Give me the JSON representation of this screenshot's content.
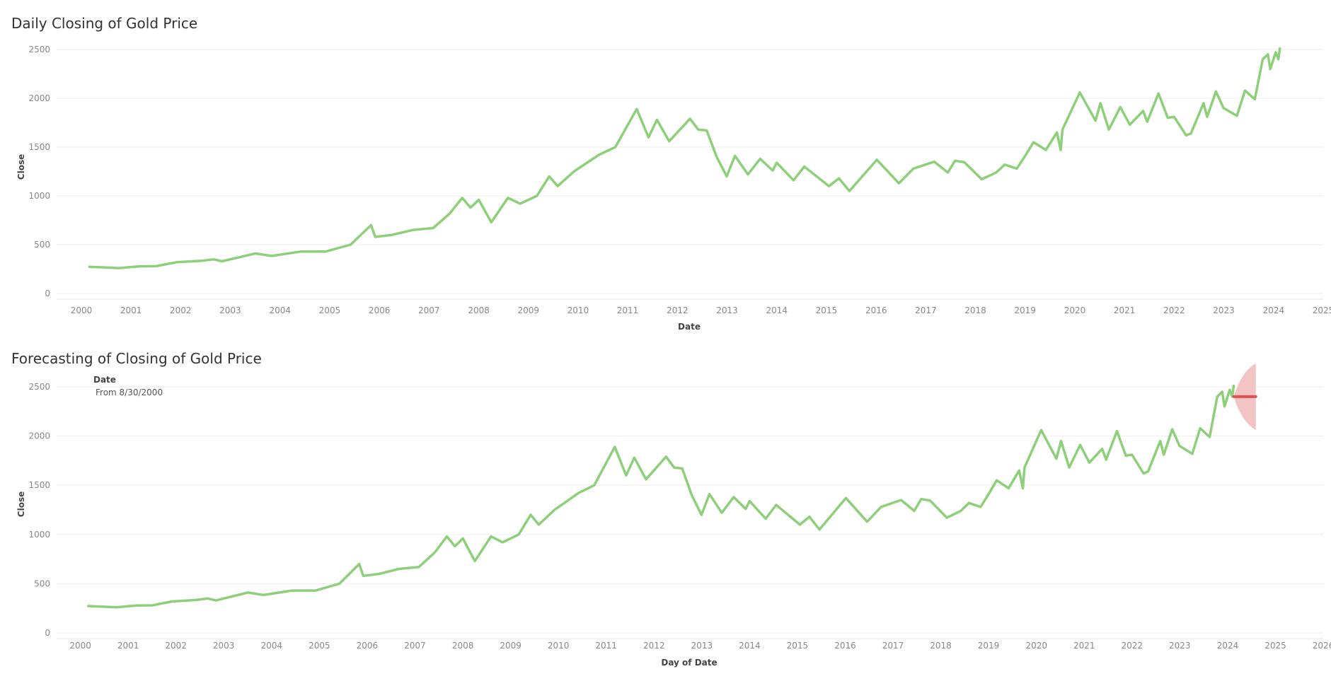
{
  "colors": {
    "actual": "#8ecf7a",
    "forecast": "#e05252",
    "forecast_band": "#f2c4c4",
    "grid": "#eeeeee"
  },
  "chart_data": [
    {
      "type": "line",
      "title": "Daily Closing of Gold Price",
      "xlabel": "Date",
      "ylabel": "Close",
      "x_ticks": [
        "2000",
        "2001",
        "2002",
        "2003",
        "2004",
        "2005",
        "2006",
        "2007",
        "2008",
        "2009",
        "2010",
        "2011",
        "2012",
        "2013",
        "2014",
        "2015",
        "2016",
        "2017",
        "2018",
        "2019",
        "2020",
        "2021",
        "2022",
        "2023",
        "2024",
        "2025"
      ],
      "y_ticks": [
        "0",
        "500",
        "1000",
        "1500",
        "2000",
        "2500"
      ],
      "xlim": [
        "2000-01-01",
        "2025-07-01"
      ],
      "ylim": [
        0,
        2500
      ],
      "grid": true,
      "series": [
        {
          "values": [
            [
              "2000-08-30",
              273
            ],
            [
              "2000-12-01",
              268
            ],
            [
              "2001-04-01",
              260
            ],
            [
              "2001-09-01",
              278
            ],
            [
              "2002-01-01",
              280
            ],
            [
              "2002-06-01",
              320
            ],
            [
              "2002-12-01",
              335
            ],
            [
              "2003-03-01",
              350
            ],
            [
              "2003-05-01",
              330
            ],
            [
              "2003-09-01",
              370
            ],
            [
              "2004-01-01",
              410
            ],
            [
              "2004-05-01",
              385
            ],
            [
              "2004-12-01",
              430
            ],
            [
              "2005-06-01",
              430
            ],
            [
              "2005-12-01",
              500
            ],
            [
              "2006-05-01",
              700
            ],
            [
              "2006-06-01",
              580
            ],
            [
              "2006-10-01",
              600
            ],
            [
              "2007-03-01",
              650
            ],
            [
              "2007-08-01",
              670
            ],
            [
              "2007-12-01",
              820
            ],
            [
              "2008-03-01",
              980
            ],
            [
              "2008-05-01",
              880
            ],
            [
              "2008-07-01",
              960
            ],
            [
              "2008-10-01",
              730
            ],
            [
              "2009-02-01",
              980
            ],
            [
              "2009-05-01",
              920
            ],
            [
              "2009-09-01",
              1000
            ],
            [
              "2009-12-01",
              1200
            ],
            [
              "2010-02-01",
              1100
            ],
            [
              "2010-06-01",
              1250
            ],
            [
              "2010-12-01",
              1420
            ],
            [
              "2011-04-01",
              1500
            ],
            [
              "2011-09-05",
              1890
            ],
            [
              "2011-12-01",
              1600
            ],
            [
              "2012-02-01",
              1780
            ],
            [
              "2012-05-01",
              1560
            ],
            [
              "2012-10-01",
              1790
            ],
            [
              "2012-12-01",
              1680
            ],
            [
              "2013-02-01",
              1670
            ],
            [
              "2013-04-15",
              1400
            ],
            [
              "2013-06-28",
              1200
            ],
            [
              "2013-08-28",
              1410
            ],
            [
              "2013-12-01",
              1220
            ],
            [
              "2014-03-01",
              1380
            ],
            [
              "2014-06-01",
              1260
            ],
            [
              "2014-07-01",
              1340
            ],
            [
              "2014-11-01",
              1160
            ],
            [
              "2015-01-20",
              1300
            ],
            [
              "2015-07-20",
              1100
            ],
            [
              "2015-10-01",
              1180
            ],
            [
              "2015-12-17",
              1050
            ],
            [
              "2016-07-06",
              1370
            ],
            [
              "2016-12-15",
              1130
            ],
            [
              "2017-04-01",
              1280
            ],
            [
              "2017-09-01",
              1350
            ],
            [
              "2017-12-10",
              1240
            ],
            [
              "2018-02-01",
              1360
            ],
            [
              "2018-04-10",
              1345
            ],
            [
              "2018-08-16",
              1170
            ],
            [
              "2018-12-01",
              1240
            ],
            [
              "2019-02-01",
              1320
            ],
            [
              "2019-05-01",
              1280
            ],
            [
              "2019-07-01",
              1410
            ],
            [
              "2019-09-01",
              1550
            ],
            [
              "2019-12-01",
              1470
            ],
            [
              "2020-02-20",
              1650
            ],
            [
              "2020-03-19",
              1470
            ],
            [
              "2020-04-01",
              1680
            ],
            [
              "2020-08-06",
              2060
            ],
            [
              "2020-11-30",
              1770
            ],
            [
              "2021-01-05",
              1950
            ],
            [
              "2021-03-08",
              1680
            ],
            [
              "2021-05-31",
              1910
            ],
            [
              "2021-08-09",
              1730
            ],
            [
              "2021-11-15",
              1870
            ],
            [
              "2021-12-15",
              1760
            ],
            [
              "2022-03-08",
              2050
            ],
            [
              "2022-05-15",
              1800
            ],
            [
              "2022-07-01",
              1810
            ],
            [
              "2022-09-27",
              1620
            ],
            [
              "2022-11-01",
              1640
            ],
            [
              "2023-02-02",
              1950
            ],
            [
              "2023-03-01",
              1810
            ],
            [
              "2023-05-04",
              2070
            ],
            [
              "2023-06-29",
              1900
            ],
            [
              "2023-10-05",
              1820
            ],
            [
              "2023-12-04",
              2080
            ],
            [
              "2024-02-14",
              1990
            ],
            [
              "2024-04-12",
              2400
            ],
            [
              "2024-05-20",
              2450
            ],
            [
              "2024-06-07",
              2300
            ],
            [
              "2024-07-17",
              2470
            ],
            [
              "2024-08-05",
              2400
            ],
            [
              "2024-08-16",
              2510
            ]
          ]
        }
      ]
    },
    {
      "type": "line",
      "title": "Forecasting of Closing of Gold Price",
      "xlabel": "Day of Date",
      "ylabel": "Close",
      "filter": {
        "label": "Date",
        "value": "From 8/30/2000"
      },
      "x_ticks": [
        "2000",
        "2001",
        "2002",
        "2003",
        "2004",
        "2005",
        "2006",
        "2007",
        "2008",
        "2009",
        "2010",
        "2011",
        "2012",
        "2013",
        "2014",
        "2015",
        "2016",
        "2017",
        "2018",
        "2019",
        "2020",
        "2021",
        "2022",
        "2023",
        "2024",
        "2025",
        "2026"
      ],
      "y_ticks": [
        "0",
        "500",
        "1000",
        "1500",
        "2000",
        "2500"
      ],
      "xlim": [
        "2000-01-01",
        "2026-07-01"
      ],
      "ylim": [
        0,
        2500
      ],
      "grid": true,
      "series": [
        {
          "values": [
            [
              "2000-08-30",
              273
            ],
            [
              "2000-12-01",
              268
            ],
            [
              "2001-04-01",
              260
            ],
            [
              "2001-09-01",
              278
            ],
            [
              "2002-01-01",
              280
            ],
            [
              "2002-06-01",
              320
            ],
            [
              "2002-12-01",
              335
            ],
            [
              "2003-03-01",
              350
            ],
            [
              "2003-05-01",
              330
            ],
            [
              "2003-09-01",
              370
            ],
            [
              "2004-01-01",
              410
            ],
            [
              "2004-05-01",
              385
            ],
            [
              "2004-12-01",
              430
            ],
            [
              "2005-06-01",
              430
            ],
            [
              "2005-12-01",
              500
            ],
            [
              "2006-05-01",
              700
            ],
            [
              "2006-06-01",
              580
            ],
            [
              "2006-10-01",
              600
            ],
            [
              "2007-03-01",
              650
            ],
            [
              "2007-08-01",
              670
            ],
            [
              "2007-12-01",
              820
            ],
            [
              "2008-03-01",
              980
            ],
            [
              "2008-05-01",
              880
            ],
            [
              "2008-07-01",
              960
            ],
            [
              "2008-10-01",
              730
            ],
            [
              "2009-02-01",
              980
            ],
            [
              "2009-05-01",
              920
            ],
            [
              "2009-09-01",
              1000
            ],
            [
              "2009-12-01",
              1200
            ],
            [
              "2010-02-01",
              1100
            ],
            [
              "2010-06-01",
              1250
            ],
            [
              "2010-12-01",
              1420
            ],
            [
              "2011-04-01",
              1500
            ],
            [
              "2011-09-05",
              1890
            ],
            [
              "2011-12-01",
              1600
            ],
            [
              "2012-02-01",
              1780
            ],
            [
              "2012-05-01",
              1560
            ],
            [
              "2012-10-01",
              1790
            ],
            [
              "2012-12-01",
              1680
            ],
            [
              "2013-02-01",
              1670
            ],
            [
              "2013-04-15",
              1400
            ],
            [
              "2013-06-28",
              1200
            ],
            [
              "2013-08-28",
              1410
            ],
            [
              "2013-12-01",
              1220
            ],
            [
              "2014-03-01",
              1380
            ],
            [
              "2014-06-01",
              1260
            ],
            [
              "2014-07-01",
              1340
            ],
            [
              "2014-11-01",
              1160
            ],
            [
              "2015-01-20",
              1300
            ],
            [
              "2015-07-20",
              1100
            ],
            [
              "2015-10-01",
              1180
            ],
            [
              "2015-12-17",
              1050
            ],
            [
              "2016-07-06",
              1370
            ],
            [
              "2016-12-15",
              1130
            ],
            [
              "2017-04-01",
              1280
            ],
            [
              "2017-09-01",
              1350
            ],
            [
              "2017-12-10",
              1240
            ],
            [
              "2018-02-01",
              1360
            ],
            [
              "2018-04-10",
              1345
            ],
            [
              "2018-08-16",
              1170
            ],
            [
              "2018-12-01",
              1240
            ],
            [
              "2019-02-01",
              1320
            ],
            [
              "2019-05-01",
              1280
            ],
            [
              "2019-07-01",
              1410
            ],
            [
              "2019-09-01",
              1550
            ],
            [
              "2019-12-01",
              1470
            ],
            [
              "2020-02-20",
              1650
            ],
            [
              "2020-03-19",
              1470
            ],
            [
              "2020-04-01",
              1680
            ],
            [
              "2020-08-06",
              2060
            ],
            [
              "2020-11-30",
              1770
            ],
            [
              "2021-01-05",
              1950
            ],
            [
              "2021-03-08",
              1680
            ],
            [
              "2021-05-31",
              1910
            ],
            [
              "2021-08-09",
              1730
            ],
            [
              "2021-11-15",
              1870
            ],
            [
              "2021-12-15",
              1760
            ],
            [
              "2022-03-08",
              2050
            ],
            [
              "2022-05-15",
              1800
            ],
            [
              "2022-07-01",
              1810
            ],
            [
              "2022-09-27",
              1620
            ],
            [
              "2022-11-01",
              1640
            ],
            [
              "2023-02-02",
              1950
            ],
            [
              "2023-03-01",
              1810
            ],
            [
              "2023-05-04",
              2070
            ],
            [
              "2023-06-29",
              1900
            ],
            [
              "2023-10-05",
              1820
            ],
            [
              "2023-12-04",
              2080
            ],
            [
              "2024-02-14",
              1990
            ],
            [
              "2024-04-12",
              2400
            ],
            [
              "2024-05-20",
              2450
            ],
            [
              "2024-06-07",
              2300
            ],
            [
              "2024-07-17",
              2470
            ],
            [
              "2024-08-05",
              2400
            ],
            [
              "2024-08-16",
              2510
            ]
          ]
        },
        {
          "values": [
            [
              "2024-08-16",
              2400
            ],
            [
              "2025-02-01",
              2400
            ]
          ],
          "band": {
            "upper_end": 2740,
            "lower_end": 2060
          }
        }
      ]
    }
  ]
}
